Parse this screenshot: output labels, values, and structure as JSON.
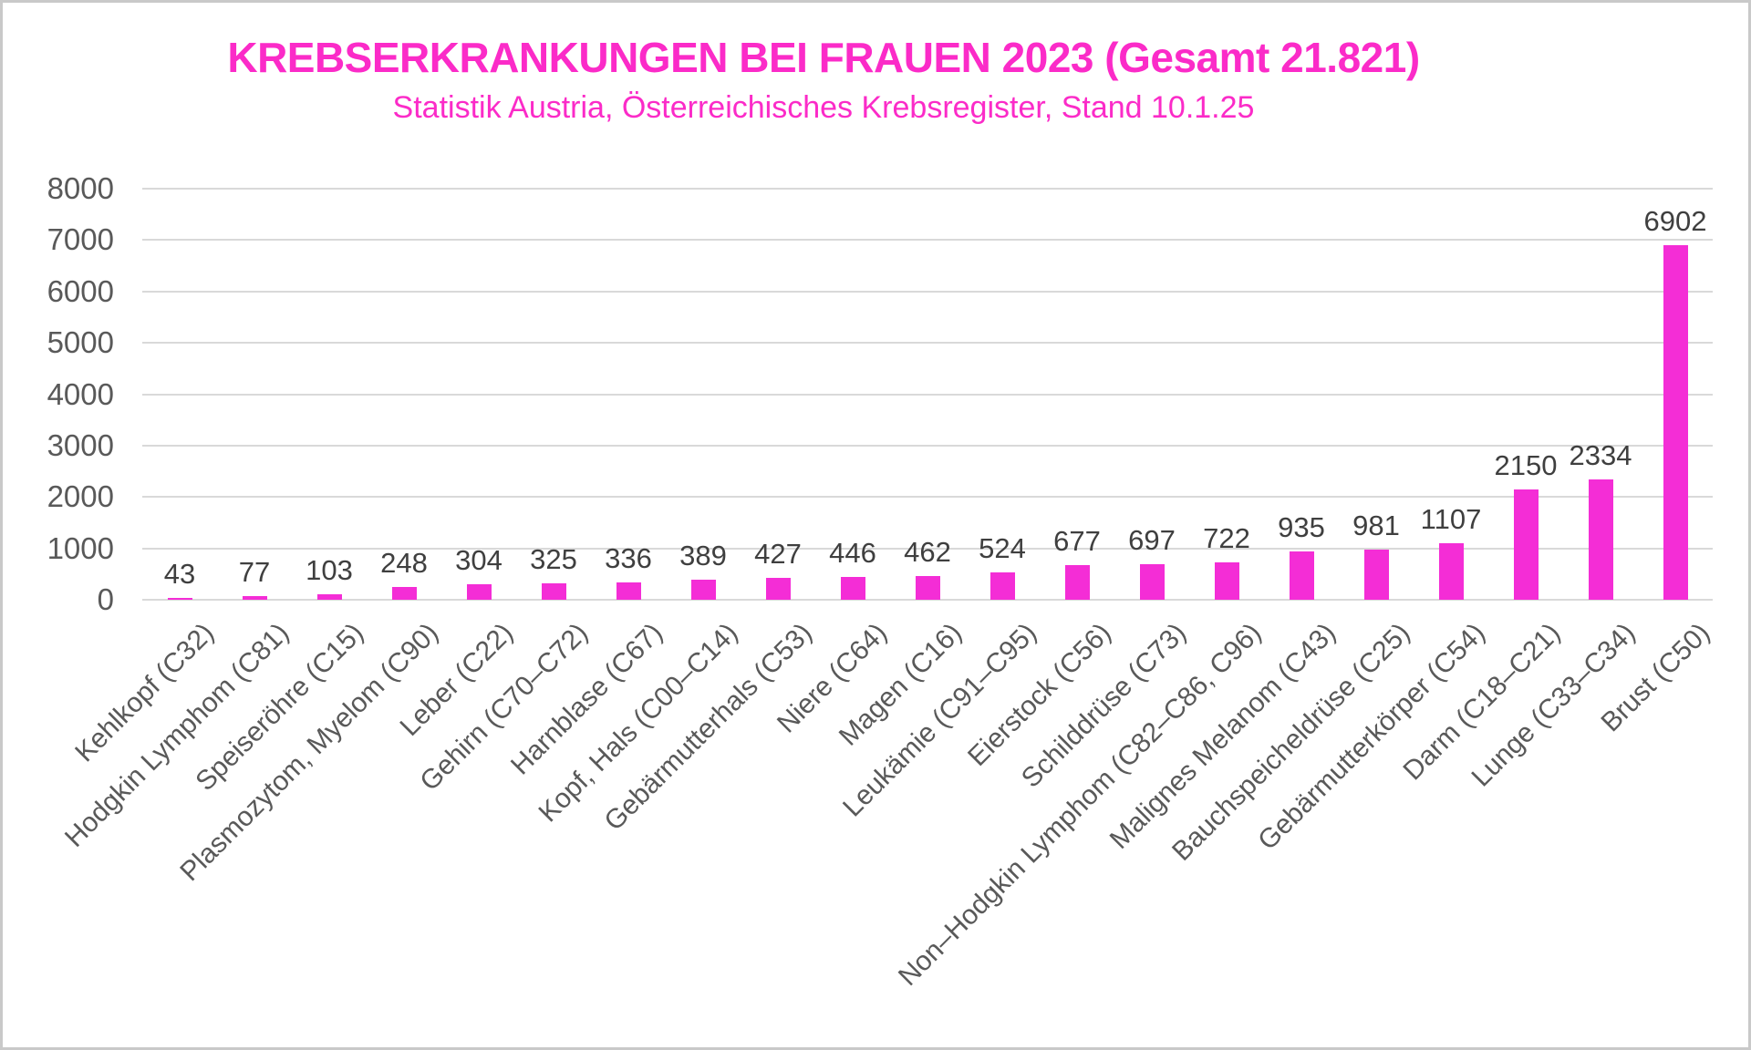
{
  "header": {
    "title": "KREBSERKRANKUNGEN BEI FRAUEN 2023 (Gesamt 21.821)",
    "subtitle": "Statistik Austria, Österreichisches Krebsregister, Stand 10.1.25"
  },
  "chart_data": {
    "type": "bar",
    "title": "KREBSERKRANKUNGEN BEI FRAUEN 2023 (Gesamt 21.821)",
    "subtitle": "Statistik Austria, Österreichisches Krebsregister, Stand 10.1.25",
    "categories": [
      "Kehlkopf (C32)",
      "Hodgkin Lymphom (C81)",
      "Speiseröhre (C15)",
      "Plasmozytom, Myelom (C90)",
      "Leber (C22)",
      "Gehirn (C70–C72)",
      "Harnblase (C67)",
      "Kopf, Hals (C00–C14)",
      "Gebärmutterhals (C53)",
      "Niere (C64)",
      "Magen (C16)",
      "Leukämie (C91–C95)",
      "Eierstock (C56)",
      "Schilddrüse (C73)",
      "Non–Hodgkin Lymphom (C82–C86, C96)",
      "Malignes Melanom (C43)",
      "Bauchspeicheldrüse (C25)",
      "Gebärmutterkörper (C54)",
      "Darm (C18–C21)",
      "Lunge (C33–C34)",
      "Brust (C50)"
    ],
    "values": [
      43,
      77,
      103,
      248,
      304,
      325,
      336,
      389,
      427,
      446,
      462,
      524,
      677,
      697,
      722,
      935,
      981,
      1107,
      2150,
      2334,
      6902
    ],
    "bar_labels_shown": true,
    "xlabel": "",
    "ylabel": "",
    "ylim": [
      0,
      8000
    ],
    "yticks": [
      0,
      1000,
      2000,
      3000,
      4000,
      5000,
      6000,
      7000,
      8000
    ],
    "grid": true,
    "legend": "none",
    "colors": {
      "bar": "#F42DD6",
      "title": "#FB2BC8",
      "value_label": "#3F3F3F",
      "axis_label": "#595959",
      "gridline": "#D9D9D9",
      "background": "#FFFFFF",
      "frame_border": "#C9C9C9"
    }
  }
}
